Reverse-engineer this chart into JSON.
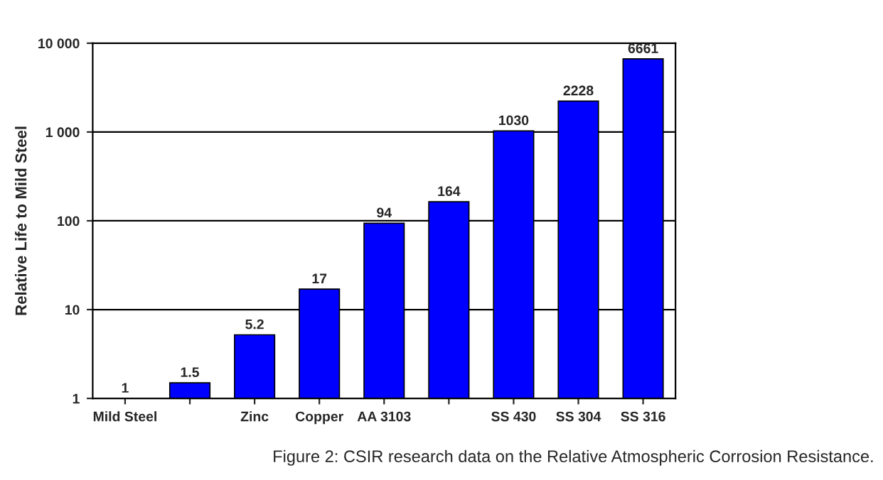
{
  "chart_data": {
    "type": "bar",
    "ylabel": "Relative Life to Mild Steel",
    "categories": [
      "Mild Steel",
      null,
      "Zinc",
      "Copper",
      "AA 3103",
      null,
      "SS 430",
      "SS 304",
      "SS 316"
    ],
    "values": [
      1,
      1.5,
      5.2,
      17,
      94,
      164,
      1030,
      2228,
      6661
    ],
    "color": "#0000ff",
    "log": true,
    "ylim": [
      1,
      10000
    ],
    "yticks": [
      1,
      10,
      100,
      {
        "value": 1000,
        "label": "1 000"
      },
      {
        "value": 10000,
        "label": "10 000"
      }
    ],
    "grid": "y",
    "data_labels": true,
    "legend": false,
    "annotations": [
      "Figure 2: CSIR research data on the Relative Atmospheric Corrosion Resistance."
    ]
  }
}
